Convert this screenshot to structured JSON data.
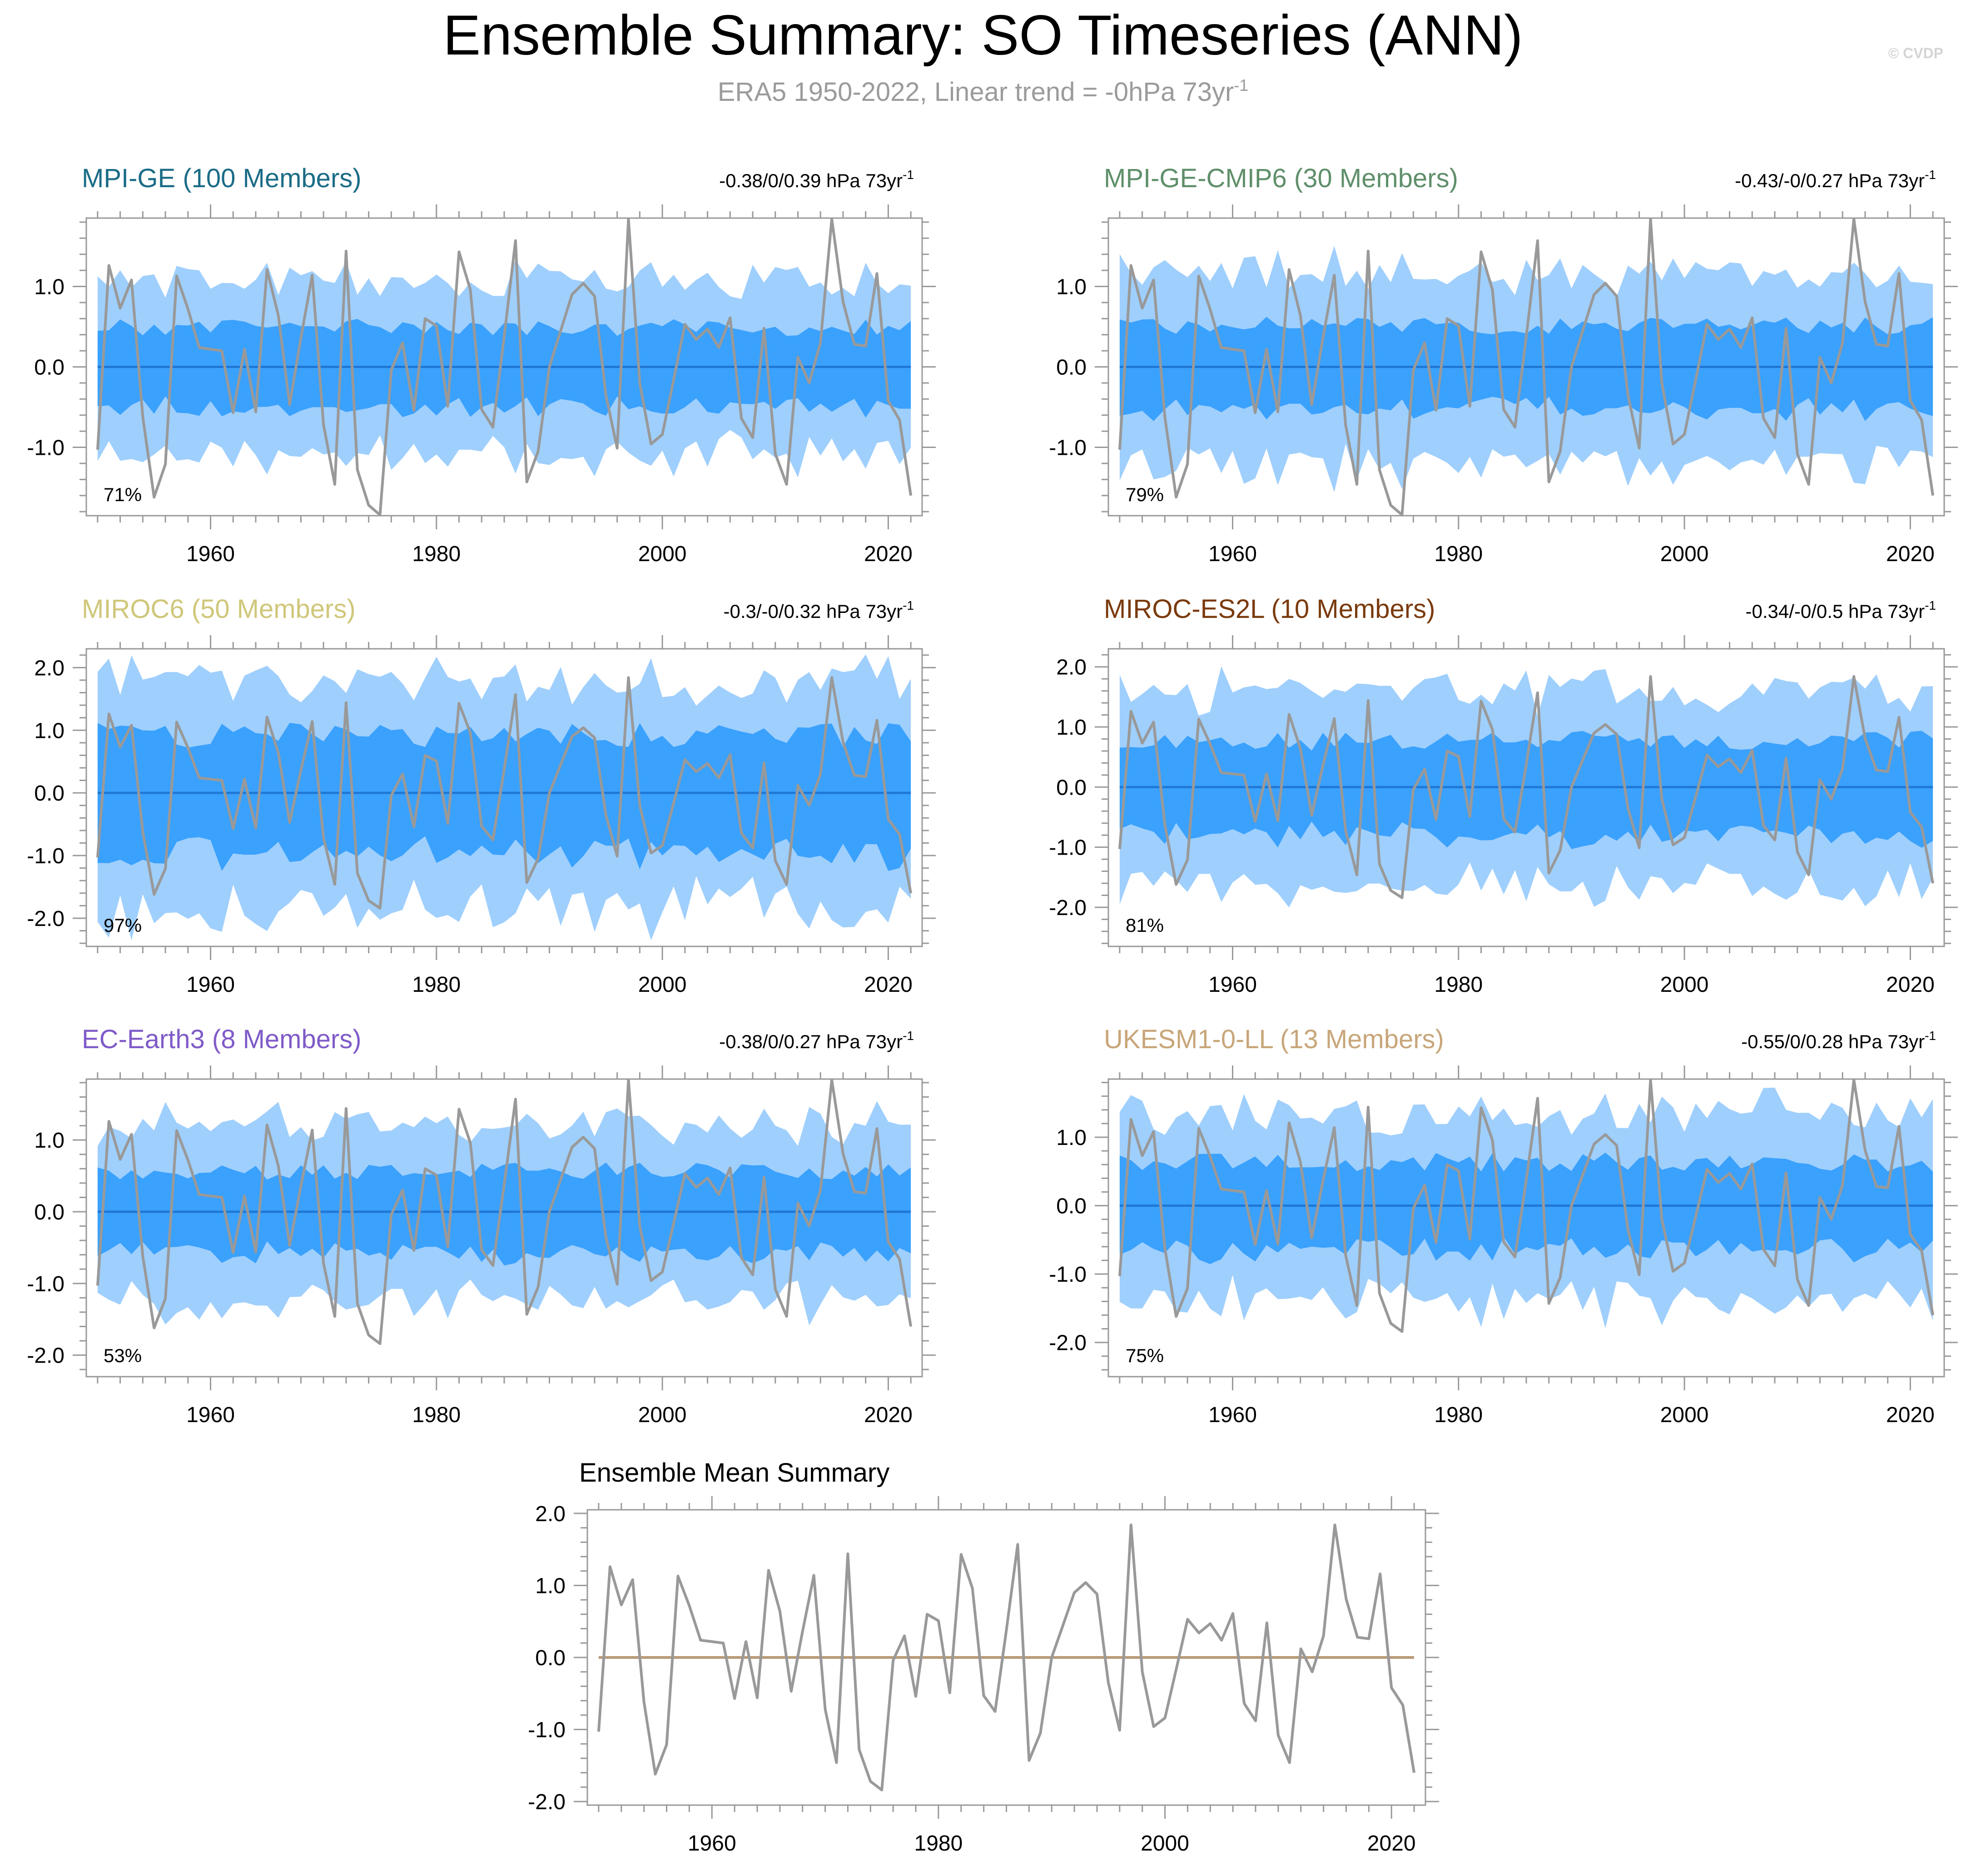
{
  "title": "Ensemble Summary: SO Timeseries (ANN)",
  "subtitle": "ERA5 1950-2022, Linear trend = -0hPa 73yr",
  "subtitle_sup": "-1",
  "watermark": "© CVDP",
  "colors": {
    "outer_band": "#9fcffd",
    "inner_band": "#3aa1fd",
    "ensemble_mean_line": "#1f78d4",
    "observation_line": "#999999",
    "summary_zero_line": "#b99b78",
    "axis": "#999999"
  },
  "chart_data": [
    {
      "type": "area",
      "title": "MPI-GE (100 Members)",
      "title_color": "#1b6c86",
      "trend_text": "-0.38/0/0.39 hPa 73yr",
      "trend_sup": "-1",
      "percent_text": "71%",
      "xlim": [
        1949,
        2023
      ],
      "ylim": [
        -1.85,
        1.85
      ],
      "yticks": [
        -1.0,
        0.0,
        1.0
      ],
      "ytick_labels": [
        "-1.0",
        "0.0",
        "1.0"
      ],
      "xticks": [
        1960,
        1980,
        2000,
        2020
      ],
      "xtick_labels": [
        "1960",
        "1980",
        "2000",
        "2020"
      ],
      "outer_amp": 1.05,
      "inner_amp": 0.48,
      "seed": 11
    },
    {
      "type": "area",
      "title": "MPI-GE-CMIP6 (30 Members)",
      "title_color": "#5f8f6a",
      "trend_text": "-0.43/-0/0.27 hPa 73yr",
      "trend_sup": "-1",
      "percent_text": "79%",
      "xlim": [
        1949,
        2023
      ],
      "ylim": [
        -1.85,
        1.85
      ],
      "yticks": [
        -1.0,
        0.0,
        1.0
      ],
      "ytick_labels": [
        "-1.0",
        "0.0",
        "1.0"
      ],
      "xticks": [
        1960,
        1980,
        2000,
        2020
      ],
      "xtick_labels": [
        "1960",
        "1980",
        "2000",
        "2020"
      ],
      "outer_amp": 1.15,
      "inner_amp": 0.5,
      "seed": 23
    },
    {
      "type": "area",
      "title": "MIROC6 (50 Members)",
      "title_color": "#cfc77a",
      "trend_text": "-0.3/-0/0.32 hPa 73yr",
      "trend_sup": "-1",
      "percent_text": "97%",
      "xlim": [
        1949,
        2023
      ],
      "ylim": [
        -2.45,
        2.3
      ],
      "yticks": [
        -2.0,
        -1.0,
        0.0,
        1.0,
        2.0
      ],
      "ytick_labels": [
        "-2.0",
        "-1.0",
        "0.0",
        "1.0",
        "2.0"
      ],
      "xticks": [
        1960,
        1980,
        2000,
        2020
      ],
      "xtick_labels": [
        "1960",
        "1980",
        "2000",
        "2020"
      ],
      "outer_amp": 1.75,
      "inner_amp": 0.9,
      "seed": 37
    },
    {
      "type": "area",
      "title": "MIROC-ES2L (10 Members)",
      "title_color": "#7a3a0c",
      "trend_text": "-0.34/-0/0.5 hPa 73yr",
      "trend_sup": "-1",
      "percent_text": "81%",
      "xlim": [
        1949,
        2023
      ],
      "ylim": [
        -2.65,
        2.3
      ],
      "yticks": [
        -2.0,
        -1.0,
        0.0,
        1.0,
        2.0
      ],
      "ytick_labels": [
        "-2.0",
        "-1.0",
        "0.0",
        "1.0",
        "2.0"
      ],
      "xticks": [
        1960,
        1980,
        2000,
        2020
      ],
      "xtick_labels": [
        "1960",
        "1980",
        "2000",
        "2020"
      ],
      "outer_amp": 1.55,
      "inner_amp": 0.75,
      "seed": 41
    },
    {
      "type": "area",
      "title": "EC-Earth3 (8 Members)",
      "title_color": "#7f5bc8",
      "trend_text": "-0.38/0/0.27 hPa 73yr",
      "trend_sup": "-1",
      "percent_text": "53%",
      "xlim": [
        1949,
        2023
      ],
      "ylim": [
        -2.3,
        1.85
      ],
      "yticks": [
        -2.0,
        -1.0,
        0.0,
        1.0
      ],
      "ytick_labels": [
        "-2.0",
        "-1.0",
        "0.0",
        "1.0"
      ],
      "xticks": [
        1960,
        1980,
        2000,
        2020
      ],
      "xtick_labels": [
        "1960",
        "1980",
        "2000",
        "2020"
      ],
      "outer_amp": 1.2,
      "inner_amp": 0.55,
      "seed": 53
    },
    {
      "type": "area",
      "title": "UKESM1-0-LL (13 Members)",
      "title_color": "#c8a67a",
      "trend_text": "-0.55/0/0.28 hPa 73yr",
      "trend_sup": "-1",
      "percent_text": "75%",
      "xlim": [
        1949,
        2023
      ],
      "ylim": [
        -2.5,
        1.85
      ],
      "yticks": [
        -2.0,
        -1.0,
        0.0,
        1.0
      ],
      "ytick_labels": [
        "-2.0",
        "-1.0",
        "0.0",
        "1.0"
      ],
      "xticks": [
        1960,
        1980,
        2000,
        2020
      ],
      "xtick_labels": [
        "1960",
        "1980",
        "2000",
        "2020"
      ],
      "outer_amp": 1.35,
      "inner_amp": 0.62,
      "seed": 67
    },
    {
      "type": "line",
      "title": "Ensemble Mean Summary",
      "title_color": "#000000",
      "xlim": [
        1949,
        2023
      ],
      "ylim": [
        -2.05,
        2.05
      ],
      "yticks": [
        -2.0,
        -1.0,
        0.0,
        1.0,
        2.0
      ],
      "ytick_labels": [
        "-2.0",
        "-1.0",
        "0.0",
        "1.0",
        "2.0"
      ],
      "xticks": [
        1960,
        1980,
        2000,
        2020
      ],
      "xtick_labels": [
        "1960",
        "1980",
        "2000",
        "2020"
      ],
      "series": [
        {
          "name": "Ensemble means",
          "constant": 0.0
        },
        {
          "name": "ERA5",
          "source": "observations"
        }
      ]
    }
  ],
  "observations": {
    "name": "ERA5",
    "years": [
      1950,
      1951,
      1952,
      1953,
      1954,
      1955,
      1956,
      1957,
      1958,
      1959,
      1960,
      1961,
      1962,
      1963,
      1964,
      1965,
      1966,
      1967,
      1968,
      1969,
      1970,
      1971,
      1972,
      1973,
      1974,
      1975,
      1976,
      1977,
      1978,
      1979,
      1980,
      1981,
      1982,
      1983,
      1984,
      1985,
      1986,
      1987,
      1988,
      1989,
      1990,
      1991,
      1992,
      1993,
      1994,
      1995,
      1996,
      1997,
      1998,
      1999,
      2000,
      2001,
      2002,
      2003,
      2004,
      2005,
      2006,
      2007,
      2008,
      2009,
      2010,
      2011,
      2012,
      2013,
      2014,
      2015,
      2016,
      2017,
      2018,
      2019,
      2020,
      2021,
      2022
    ],
    "values": [
      -1.03,
      1.26,
      0.73,
      1.08,
      -0.62,
      -1.62,
      -1.21,
      1.13,
      0.72,
      0.24,
      0.22,
      0.2,
      -0.57,
      0.22,
      -0.56,
      1.21,
      0.64,
      -0.47,
      0.36,
      1.14,
      -0.72,
      -1.46,
      1.44,
      -1.28,
      -1.72,
      -1.84,
      -0.04,
      0.3,
      -0.54,
      0.6,
      0.51,
      -0.49,
      1.43,
      0.96,
      -0.53,
      -0.75,
      0.38,
      1.57,
      -1.43,
      -1.05,
      0.0,
      0.45,
      0.9,
      1.04,
      0.88,
      -0.35,
      -1.01,
      1.84,
      -0.2,
      -0.96,
      -0.84,
      -0.16,
      0.53,
      0.34,
      0.47,
      0.24,
      0.61,
      -0.64,
      -0.88,
      0.48,
      -1.08,
      -1.46,
      0.12,
      -0.2,
      0.3,
      1.84,
      0.81,
      0.28,
      0.26,
      1.16,
      -0.42,
      -0.66,
      -1.6
    ]
  }
}
